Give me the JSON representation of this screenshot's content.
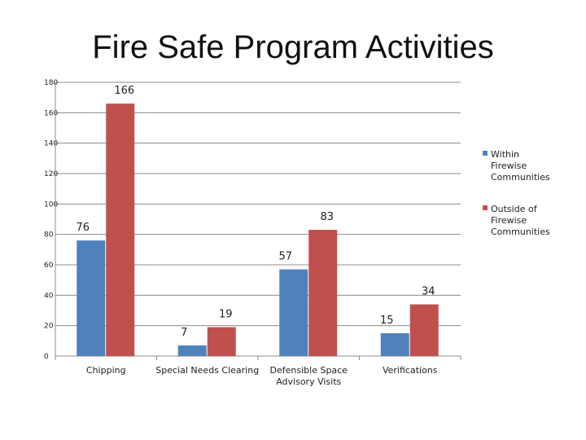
{
  "chart_data": {
    "type": "bar",
    "title": "Fire Safe Program Activities",
    "categories": [
      [
        "Chipping"
      ],
      [
        "Special Needs Clearing"
      ],
      [
        "Defensible Space",
        "Advisory Visits"
      ],
      [
        "Verifications"
      ]
    ],
    "series": [
      {
        "name": [
          "Within",
          "Firewise",
          "Communities"
        ],
        "values": [
          76,
          7,
          57,
          15
        ],
        "color": "#4F81BD"
      },
      {
        "name": [
          "Outside of",
          "Firewise",
          "Communities"
        ],
        "values": [
          166,
          19,
          83,
          34
        ],
        "color": "#C0504D"
      }
    ],
    "ylim": [
      0,
      180
    ],
    "yticks": [
      0,
      20,
      40,
      60,
      80,
      100,
      120,
      140,
      160,
      180
    ],
    "grid": true,
    "legend_position": "right"
  }
}
